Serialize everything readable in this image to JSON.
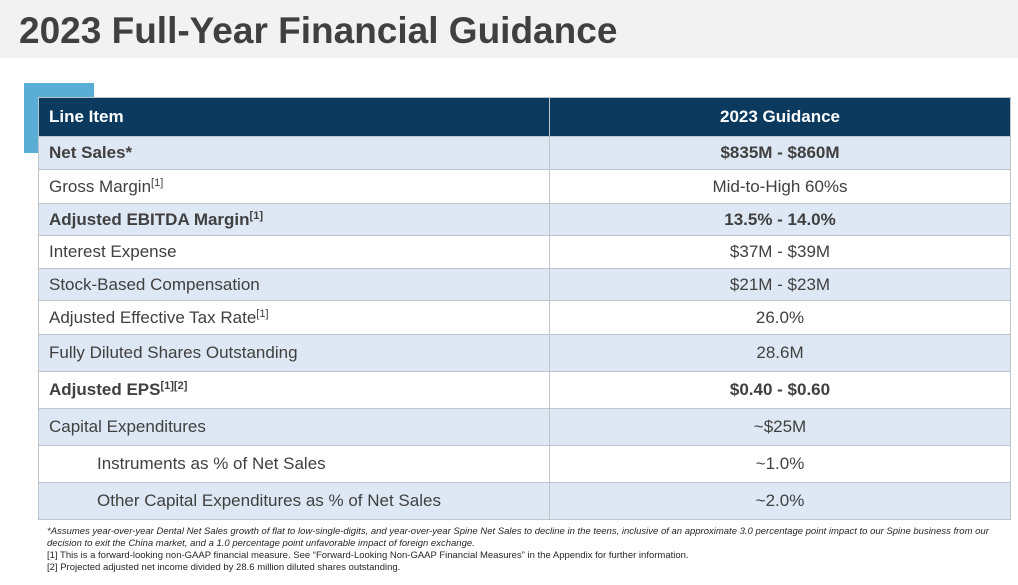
{
  "title": "2023 Full-Year Financial Guidance",
  "table": {
    "headers": [
      "Line Item",
      "2023 Guidance"
    ],
    "rows": [
      {
        "label": "Net Sales*",
        "sup": "",
        "value": "$835M - $860M"
      },
      {
        "label": "Gross Margin",
        "sup": "[1]",
        "value": "Mid-to-High 60%s"
      },
      {
        "label": "Adjusted EBITDA Margin",
        "sup": "[1]",
        "value": "13.5% - 14.0%"
      },
      {
        "label": "Interest Expense",
        "sup": "",
        "value": "$37M - $39M"
      },
      {
        "label": "Stock-Based Compensation",
        "sup": "",
        "value": "$21M - $23M"
      },
      {
        "label": "Adjusted Effective Tax Rate",
        "sup": "[1]",
        "value": "26.0%"
      },
      {
        "label": "Fully Diluted Shares Outstanding",
        "sup": "",
        "value": "28.6M"
      },
      {
        "label": "Adjusted EPS",
        "sup": "[1][2]",
        "value": "$0.40 - $0.60"
      },
      {
        "label": "Capital Expenditures",
        "sup": "",
        "value": "~$25M"
      },
      {
        "label": "Instruments as % of Net Sales",
        "sup": "",
        "value": "~1.0%"
      },
      {
        "label": "Other Capital Expenditures as % of Net Sales",
        "sup": "",
        "value": "~2.0%"
      }
    ]
  },
  "footnotes": {
    "star": "*Assumes year-over-year Dental Net Sales growth of flat to low-single-digits, and year-over-year Spine Net Sales to decline in the teens, inclusive of an approximate 3.0 percentage point impact to our Spine business from our decision to exit the China market, and a 1.0 percentage point unfavorable impact of foreign exchange.",
    "note1": "[1] This is a forward-looking non-GAAP financial measure. See “Forward-Looking Non-GAAP Financial Measures” in the Appendix for further information.",
    "note2": "[2] Projected adjusted net income divided by 28.6 million diluted shares outstanding."
  },
  "colors": {
    "header_bg": "#0b3a5e",
    "row_shade": "#dde8f4",
    "accent": "#5aaed6",
    "title_band": "#f2f2f2"
  }
}
